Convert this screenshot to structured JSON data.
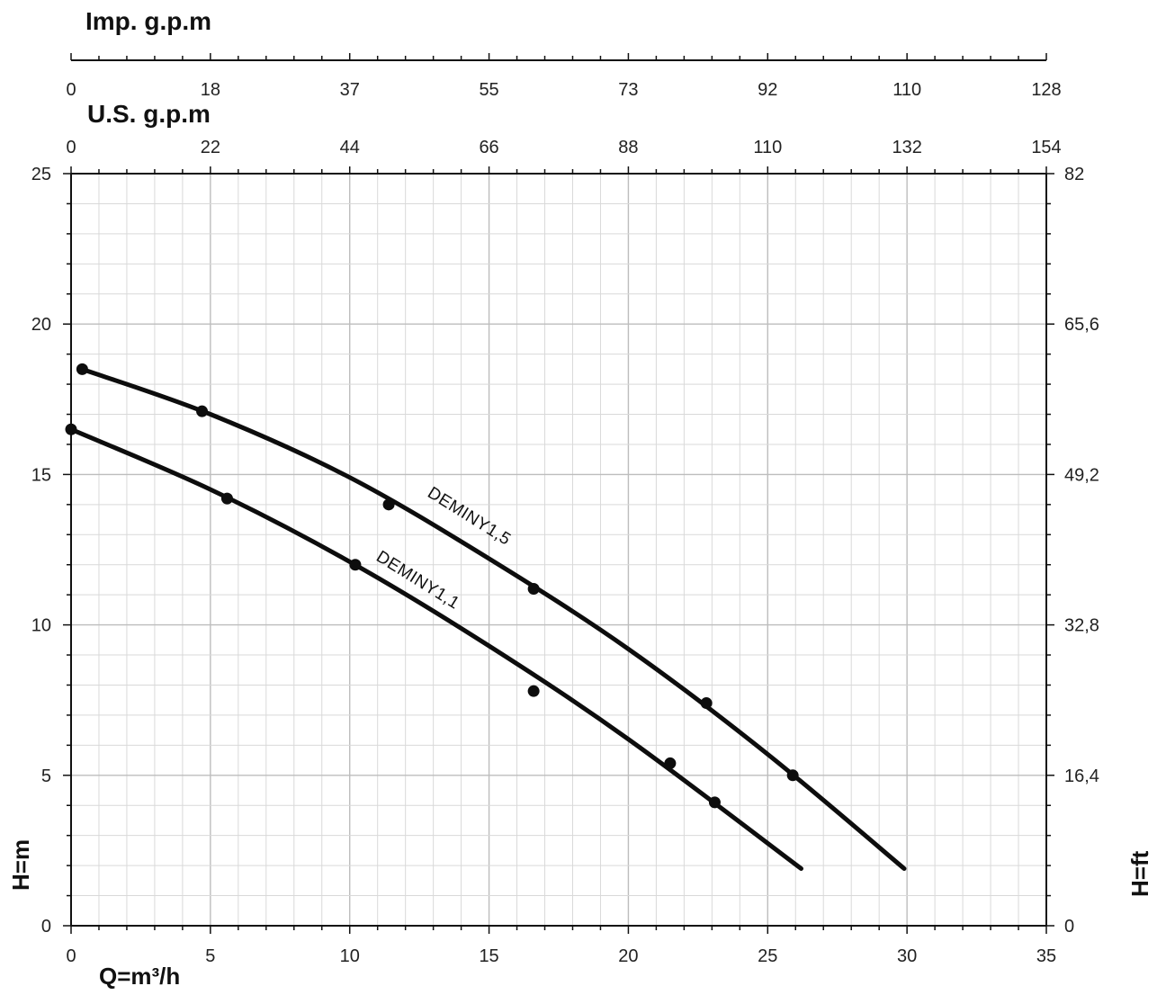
{
  "chart_data": {
    "type": "line",
    "x_axis": {
      "label": "Q=m³/h",
      "range": [
        0,
        35
      ],
      "ticks": [
        "0",
        "5",
        "10",
        "15",
        "20",
        "25",
        "30",
        "35"
      ]
    },
    "y_axis_left": {
      "label": "H=m",
      "range": [
        0,
        25
      ],
      "ticks": [
        "0",
        "5",
        "10",
        "15",
        "20",
        "25"
      ]
    },
    "y_axis_right": {
      "label": "H=ft",
      "range": [
        0,
        82
      ],
      "ticks": [
        "0",
        "16,4",
        "32,8",
        "49,2",
        "65,6",
        "82"
      ]
    },
    "top_axis_imp": {
      "label": "Imp. g.p.m",
      "range": [
        0,
        128
      ],
      "ticks": [
        "0",
        "18",
        "37",
        "55",
        "73",
        "92",
        "110",
        "128"
      ]
    },
    "top_axis_us": {
      "label": "U.S. g.p.m",
      "range": [
        0,
        154
      ],
      "ticks": [
        "0",
        "22",
        "44",
        "66",
        "88",
        "110",
        "132",
        "154"
      ]
    },
    "grid": true,
    "series": [
      {
        "name": "DEMINY1,5",
        "curve": [
          {
            "x": 0.4,
            "y": 18.5
          },
          {
            "x": 5,
            "y": 17.0
          },
          {
            "x": 10,
            "y": 14.9
          },
          {
            "x": 15,
            "y": 12.2
          },
          {
            "x": 20,
            "y": 9.2
          },
          {
            "x": 25,
            "y": 5.7
          },
          {
            "x": 29.9,
            "y": 1.9
          }
        ],
        "points": [
          {
            "x": 0.4,
            "y": 18.5
          },
          {
            "x": 4.7,
            "y": 17.1
          },
          {
            "x": 11.4,
            "y": 14.0
          },
          {
            "x": 16.6,
            "y": 11.2
          },
          {
            "x": 22.8,
            "y": 7.4
          },
          {
            "x": 25.9,
            "y": 5.0
          }
        ]
      },
      {
        "name": "DEMINY1,1",
        "curve": [
          {
            "x": 0,
            "y": 16.5
          },
          {
            "x": 5,
            "y": 14.5
          },
          {
            "x": 10,
            "y": 12.1
          },
          {
            "x": 15,
            "y": 9.3
          },
          {
            "x": 20,
            "y": 6.2
          },
          {
            "x": 26.2,
            "y": 1.9
          }
        ],
        "points": [
          {
            "x": 0,
            "y": 16.5
          },
          {
            "x": 5.6,
            "y": 14.2
          },
          {
            "x": 10.2,
            "y": 12.0
          },
          {
            "x": 16.6,
            "y": 7.8
          },
          {
            "x": 21.5,
            "y": 5.4
          },
          {
            "x": 23.1,
            "y": 4.1
          }
        ]
      }
    ]
  }
}
